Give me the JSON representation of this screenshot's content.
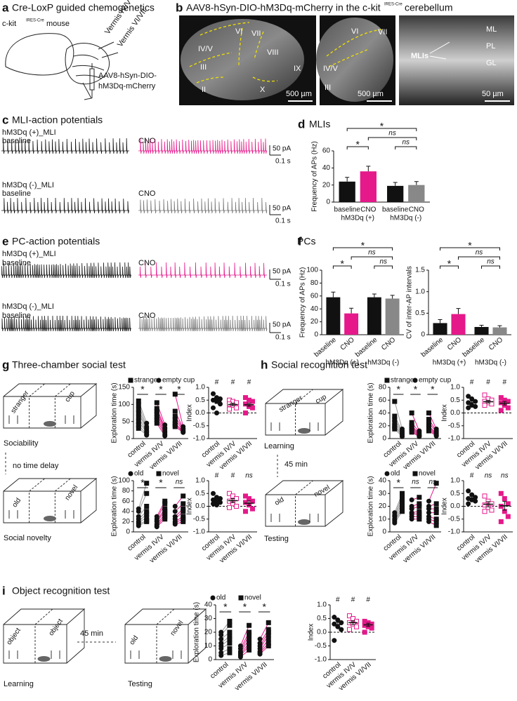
{
  "panel_a": {
    "letter": "a",
    "title": "Cre-LoxP guided chemogenetics",
    "mouse_prefix": "c-kit",
    "mouse_sup": "IRES-Cre",
    "mouse_suffix": "mouse",
    "label_1": "Vermis IV/V",
    "label_2": "Vermis VI/VII",
    "virus_1": "AAV8-hSyn-DIO-",
    "virus_2": "hM3Dq-mCherry"
  },
  "panel_b": {
    "letter": "b",
    "title": "AAV8-hSyn-DIO-hM3Dq-mCherry in the c-kit",
    "title_sup": "IRES-Cre",
    "title_end": "cerebellum",
    "image_1": [
      "VI",
      "VII",
      "IV/V",
      "VIII",
      "III",
      "IX",
      "II",
      "X"
    ],
    "scale_1": "500 µm",
    "image_2": [
      "VI",
      "VII",
      "IV/V",
      "III"
    ],
    "scale_2": "500 µm",
    "image_3": [
      "ML",
      "MLIs",
      "PL",
      "GL"
    ],
    "scale_3": "50 µm"
  },
  "panel_c": {
    "letter": "c",
    "title": "MLI-action potentials",
    "row_1": "hM3Dq (+)_MLI",
    "row_2": "hM3Dq (-)_MLI",
    "baseline": "baseline",
    "cno": "CNO",
    "scale_y": "50 pA",
    "scale_x": "0.1 s"
  },
  "panel_d": {
    "letter": "d"
  },
  "panel_e": {
    "letter": "e",
    "title": "PC-action potentials",
    "row_1": "hM3Dq (+)_MLI",
    "row_2": "hM3Dq (-)_MLI",
    "baseline": "baseline",
    "cno": "CNO",
    "scale_y": "50 pA",
    "scale_x": "0.1 s"
  },
  "panel_f": {
    "letter": "f"
  },
  "panel_g": {
    "letter": "g",
    "title": "Three-chamber social test",
    "box_1": [
      "stranger",
      "cup"
    ],
    "caption_1": "Sociability",
    "delay": "no time delay",
    "box_2": [
      "old",
      "novel"
    ],
    "caption_2": "Social novelty"
  },
  "panel_h": {
    "letter": "h",
    "title": "Social recognition test",
    "box_1": [
      "stranger",
      "cup"
    ],
    "caption_1": "Learning",
    "delay": "45 min",
    "box_2": [
      "old",
      "novel"
    ],
    "caption_2": "Testing"
  },
  "panel_i": {
    "letter": "i",
    "title": "Object recognition test",
    "box_1": [
      "object",
      "object"
    ],
    "caption_1": "Learning",
    "delay": "45 min",
    "box_2": [
      "old",
      "novel"
    ],
    "caption_2": "Testing"
  },
  "chart_data": [
    {
      "type": "bar",
      "title": "MLIs",
      "ylabel": "Frequency of APs (Hz)",
      "categories": [
        "baseline",
        "CNO",
        "baseline",
        "CNO"
      ],
      "groups": [
        "hM3Dq (+)",
        "hM3Dq (-)"
      ],
      "values": [
        24,
        36,
        19,
        20
      ],
      "errors": [
        5,
        6,
        4,
        4
      ],
      "colors": [
        "#111111",
        "#e5198a",
        "#111111",
        "#888888"
      ],
      "ylim": [
        0,
        60
      ],
      "yticks": [
        0,
        20,
        40,
        60
      ],
      "sig": [
        "*",
        "ns",
        "ns",
        "*"
      ]
    },
    {
      "type": "bar",
      "title": "PCs",
      "ylabel": "Frequency of APs (Hz)",
      "categories": [
        "baseline",
        "CNO",
        "baseline",
        "CNO"
      ],
      "groups": [
        "hM3Dq (+)",
        "hM3Dq (-)"
      ],
      "values": [
        58,
        33,
        58,
        56
      ],
      "errors": [
        8,
        8,
        5,
        5
      ],
      "colors": [
        "#111111",
        "#e5198a",
        "#111111",
        "#888888"
      ],
      "ylim": [
        0,
        100
      ],
      "yticks": [
        0,
        20,
        40,
        60,
        80,
        100
      ],
      "sig": [
        "*",
        "ns",
        "ns",
        "*"
      ]
    },
    {
      "type": "bar",
      "ylabel": "CV of inter-AP intervals",
      "categories": [
        "baseline",
        "CNO",
        "baseline",
        "CNO"
      ],
      "groups": [
        "hM3Dq (+)",
        "hM3Dq (-)"
      ],
      "values": [
        0.27,
        0.48,
        0.18,
        0.17
      ],
      "errors": [
        0.08,
        0.13,
        0.04,
        0.04
      ],
      "colors": [
        "#111111",
        "#e5198a",
        "#111111",
        "#888888"
      ],
      "ylim": [
        0,
        1.5
      ],
      "yticks": [
        0,
        0.5,
        {
          "value": 1,
          "label": "1.0"
        },
        1.5
      ],
      "sig": [
        "*",
        "ns",
        "ns",
        "*"
      ]
    },
    {
      "type": "paired",
      "ylabel": "Exploration time (s)",
      "categories": [
        "control",
        "vermis IV/V",
        "vermis VI/VII"
      ],
      "colors": [
        "#999999",
        "#e5198a",
        "#e5198a"
      ],
      "series": [
        {
          "name": "stranger",
          "marker": "square",
          "values": [
            [
              110,
              98,
              85,
              75,
              62,
              50,
              40,
              30
            ],
            [
              105,
              88,
              80,
              72,
              62,
              55,
              45
            ],
            [
              130,
              80,
              65,
              55,
              45,
              40,
              35
            ]
          ]
        },
        {
          "name": "empty cup",
          "marker": "circle",
          "values": [
            [
              45,
              35,
              30,
              25,
              20,
              18,
              12,
              10
            ],
            [
              40,
              32,
              28,
              22,
              18,
              12,
              8
            ],
            [
              35,
              30,
              28,
              25,
              22,
              20,
              18
            ]
          ]
        }
      ],
      "ylim": [
        0,
        150
      ],
      "yticks": [
        0,
        50,
        100,
        150
      ],
      "sig": [
        "*",
        "*",
        "*"
      ]
    },
    {
      "type": "index",
      "ylabel": "Index",
      "categories": [
        "control",
        "vermis IV/V",
        "vermis VI/VII"
      ],
      "colors": [
        "#111111",
        "#e5198a",
        "#e5198a"
      ],
      "markers": [
        "circle",
        "open-square",
        "square"
      ],
      "values": [
        0.45,
        0.33,
        0.32
      ],
      "errors": [
        0.08,
        0.05,
        0.06
      ],
      "points": [
        [
          0.75,
          0.6,
          0.55,
          0.5,
          0.45,
          0.35,
          0.2,
          0.0
        ],
        [
          0.5,
          0.45,
          0.4,
          0.35,
          0.3,
          0.2,
          0.15
        ],
        [
          0.6,
          0.5,
          0.45,
          0.35,
          0.25,
          0.2,
          0.0
        ]
      ],
      "ylim": [
        -1,
        1
      ],
      "yticks": [
        {
          "value": -1,
          "label": "-1.0"
        },
        -0.5,
        {
          "value": 0,
          "label": "0.0"
        },
        0.5,
        {
          "value": 1,
          "label": "1.0"
        }
      ],
      "sig": [
        "#",
        "#",
        "#"
      ]
    },
    {
      "type": "paired",
      "ylabel": "Exploration time (s)",
      "categories": [
        "control",
        "vermis IV/V",
        "vermis VI/VII"
      ],
      "colors": [
        "#999999",
        "#e5198a",
        "#e5198a"
      ],
      "series": [
        {
          "name": "old",
          "marker": "circle",
          "values": [
            [
              45,
              40,
              30,
              25,
              20,
              18,
              15,
              12
            ],
            [
              30,
              25,
              22,
              20,
              15,
              12,
              10
            ],
            [
              50,
              40,
              30,
              25,
              20,
              18,
              15
            ]
          ]
        },
        {
          "name": "novel",
          "marker": "square",
          "values": [
            [
              95,
              75,
              50,
              40,
              35,
              28,
              22,
              20
            ],
            [
              60,
              55,
              45,
              40,
              35,
              30,
              25
            ],
            [
              70,
              55,
              45,
              40,
              30,
              25,
              20
            ]
          ]
        }
      ],
      "ylim": [
        0,
        100
      ],
      "yticks": [
        0,
        20,
        40,
        60,
        80,
        100
      ],
      "sig": [
        "*",
        "*",
        "ns"
      ]
    },
    {
      "type": "index",
      "ylabel": "Index",
      "categories": [
        "control",
        "vermis IV/V",
        "vermis VI/VII"
      ],
      "colors": [
        "#111111",
        "#e5198a",
        "#e5198a"
      ],
      "markers": [
        "circle",
        "open-square",
        "square"
      ],
      "values": [
        0.25,
        0.22,
        0.12
      ],
      "errors": [
        0.05,
        0.08,
        0.09
      ],
      "points": [
        [
          0.5,
          0.35,
          0.3,
          0.25,
          0.2,
          0.15,
          0.1,
          0.05
        ],
        [
          0.5,
          0.4,
          0.3,
          0.2,
          0.1,
          0.0,
          -0.05
        ],
        [
          0.4,
          0.3,
          0.2,
          0.15,
          0.05,
          -0.1,
          -0.2
        ]
      ],
      "ylim": [
        -1,
        1
      ],
      "yticks": [
        {
          "value": -1,
          "label": "-1.0"
        },
        -0.5,
        {
          "value": 0,
          "label": "0.0"
        },
        0.5,
        {
          "value": 1,
          "label": "1.0"
        }
      ],
      "sig": [
        "#",
        "#",
        "ns"
      ]
    },
    {
      "type": "paired",
      "ylabel": "Exploration time (s)",
      "categories": [
        "control",
        "vermis IV/V",
        "vermis VI/VII"
      ],
      "colors": [
        "#999999",
        "#e5198a",
        "#e5198a"
      ],
      "series": [
        {
          "name": "stranger",
          "marker": "square",
          "values": [
            [
              58,
              35,
              30,
              25,
              20,
              18,
              15
            ],
            [
              40,
              25,
              20,
              18,
              15,
              12,
              10
            ],
            [
              40,
              30,
              25,
              20,
              18,
              15,
              12
            ]
          ]
        },
        {
          "name": "empty cup",
          "marker": "circle",
          "values": [
            [
              15,
              12,
              10,
              8,
              7,
              5,
              3
            ],
            [
              12,
              10,
              8,
              6,
              5,
              4,
              3
            ],
            [
              15,
              12,
              10,
              8,
              6,
              5,
              4
            ]
          ]
        }
      ],
      "ylim": [
        0,
        80
      ],
      "yticks": [
        0,
        20,
        40,
        60,
        80
      ],
      "sig": [
        "*",
        "*",
        "*"
      ]
    },
    {
      "type": "index",
      "ylabel": "Index",
      "categories": [
        "control",
        "vermis IV/V",
        "vermis VI/VII"
      ],
      "colors": [
        "#111111",
        "#e5198a",
        "#e5198a"
      ],
      "markers": [
        "circle",
        "open-square",
        "square"
      ],
      "values": [
        0.4,
        0.44,
        0.38
      ],
      "errors": [
        0.06,
        0.05,
        0.07
      ],
      "points": [
        [
          0.65,
          0.55,
          0.45,
          0.4,
          0.3,
          0.25,
          0.2
        ],
        [
          0.7,
          0.55,
          0.5,
          0.45,
          0.4,
          0.35,
          0.3
        ],
        [
          0.6,
          0.5,
          0.45,
          0.4,
          0.3,
          0.2,
          0.1
        ]
      ],
      "ylim": [
        -1,
        1
      ],
      "yticks": [
        {
          "value": -1,
          "label": "-1.0"
        },
        -0.5,
        {
          "value": 0,
          "label": "0.0"
        },
        0.5,
        {
          "value": 1,
          "label": "1.0"
        }
      ],
      "sig": [
        "#",
        "#",
        "#"
      ]
    },
    {
      "type": "paired",
      "ylabel": "Exploration time (s)",
      "categories": [
        "control",
        "vermis IV/V",
        "vermis VI/VII"
      ],
      "colors": [
        "#999999",
        "#e5198a",
        "#e5198a"
      ],
      "series": [
        {
          "name": "old",
          "marker": "circle",
          "values": [
            [
              15,
              13,
              12,
              10,
              9,
              8,
              7
            ],
            [
              25,
              20,
              18,
              15,
              14,
              12,
              10
            ],
            [
              24,
              20,
              18,
              15,
              12,
              10,
              8
            ]
          ]
        },
        {
          "name": "novel",
          "marker": "square",
          "values": [
            [
              30,
              28,
              25,
              23,
              20,
              18,
              16
            ],
            [
              27,
              22,
              20,
              16,
              14,
              12,
              10
            ],
            [
              38,
              22,
              18,
              15,
              10,
              8,
              5
            ]
          ]
        }
      ],
      "ylim": [
        0,
        40
      ],
      "yticks": [
        0,
        10,
        20,
        30,
        40
      ],
      "sig": [
        "*",
        "ns",
        "ns"
      ]
    },
    {
      "type": "index",
      "ylabel": "Index",
      "categories": [
        "control",
        "vermis IV/V",
        "vermis VI/VII"
      ],
      "colors": [
        "#111111",
        "#e5198a",
        "#e5198a"
      ],
      "markers": [
        "circle",
        "open-square",
        "square"
      ],
      "values": [
        0.32,
        0.08,
        0.02
      ],
      "errors": [
        0.06,
        0.1,
        0.17
      ],
      "points": [
        [
          0.6,
          0.45,
          0.35,
          0.3,
          0.25,
          0.2,
          0.1
        ],
        [
          0.4,
          0.2,
          0.1,
          0.05,
          -0.05,
          -0.15,
          -0.2
        ],
        [
          0.5,
          0.3,
          0.1,
          0.0,
          -0.2,
          -0.4,
          -0.6
        ]
      ],
      "ylim": [
        -1,
        1
      ],
      "yticks": [
        {
          "value": -1,
          "label": "-1.0"
        },
        -0.5,
        {
          "value": 0,
          "label": "0.0"
        },
        0.5,
        {
          "value": 1,
          "label": "1.0"
        }
      ],
      "sig": [
        "#",
        "ns",
        "ns"
      ]
    },
    {
      "type": "paired",
      "ylabel": "Exploration time (s)",
      "categories": [
        "control",
        "vermis IV/V",
        "vermis VI/VII"
      ],
      "colors": [
        "#999999",
        "#e5198a",
        "#e5198a"
      ],
      "series": [
        {
          "name": "old",
          "marker": "circle",
          "values": [
            [
              20,
              18,
              15,
              12,
              10,
              8,
              5,
              3
            ],
            [
              10,
              8,
              6,
              5,
              4,
              3,
              2
            ],
            [
              15,
              12,
              10,
              8,
              6,
              5,
              4
            ]
          ]
        },
        {
          "name": "novel",
          "marker": "square",
          "values": [
            [
              28,
              25,
              20,
              17,
              15,
              12,
              8,
              5
            ],
            [
              25,
              20,
              18,
              15,
              12,
              10,
              7
            ],
            [
              27,
              22,
              20,
              18,
              15,
              12,
              10
            ]
          ]
        }
      ],
      "ylim": [
        0,
        40
      ],
      "yticks": [
        0,
        10,
        20,
        30,
        40
      ],
      "sig": [
        "*",
        "*",
        "*"
      ]
    },
    {
      "type": "index",
      "ylabel": "Index",
      "categories": [
        "control",
        "vermis IV/V",
        "vermis VI/VII"
      ],
      "colors": [
        "#111111",
        "#e5198a",
        "#e5198a"
      ],
      "markers": [
        "circle",
        "open-square",
        "square"
      ],
      "values": [
        0.28,
        0.35,
        0.27
      ],
      "errors": [
        0.08,
        0.07,
        0.06
      ],
      "points": [
        [
          0.55,
          0.45,
          0.35,
          0.3,
          0.2,
          0.1,
          -0.3
        ],
        [
          0.6,
          0.5,
          0.4,
          0.35,
          0.3,
          0.2,
          0.1
        ],
        [
          0.4,
          0.35,
          0.3,
          0.25,
          0.2,
          0.15,
          0.0
        ]
      ],
      "ylim": [
        -1,
        1
      ],
      "yticks": [
        {
          "value": -1,
          "label": "-1.0"
        },
        -0.5,
        {
          "value": 0,
          "label": "0.0"
        },
        0.5,
        {
          "value": 1,
          "label": "1.0"
        }
      ],
      "sig": [
        "#",
        "#",
        "#"
      ]
    }
  ]
}
